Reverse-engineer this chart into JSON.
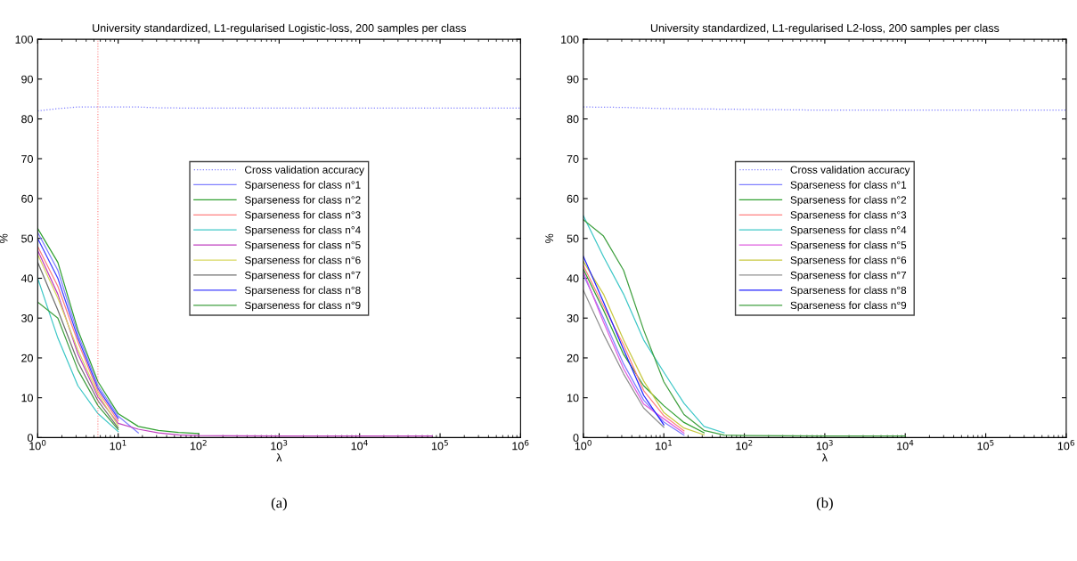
{
  "chart_data": [
    {
      "type": "line",
      "title": "University standardized, L1-regularised Logistic-loss, 200 samples per class",
      "xlabel": "λ",
      "ylabel": "%",
      "annotations": [
        "(a)"
      ],
      "log": "x",
      "xlim": [
        1,
        1000000
      ],
      "xticks": [
        {
          "value": 1,
          "label": "10$^{0}$"
        },
        {
          "value": 10,
          "label": "10$^{1}$"
        },
        {
          "value": 100,
          "label": "10$^{2}$"
        },
        {
          "value": 1000,
          "label": "10$^{3}$"
        },
        {
          "value": 10000,
          "label": "10$^{4}$"
        },
        {
          "value": 100000,
          "label": "10$^{5}$"
        },
        {
          "value": 1000000,
          "label": "10$^{6}$"
        }
      ],
      "ylim": [
        0,
        100
      ],
      "yticks": [
        0,
        10,
        20,
        30,
        40,
        50,
        60,
        70,
        80,
        90,
        100
      ],
      "grid": false,
      "legend": "center",
      "ref_lines": [
        {
          "axis": "x",
          "value": 5.6,
          "color": "#ff8080",
          "line_style": "dotted"
        }
      ],
      "series": [
        {
          "name": "Cross validation accuracy",
          "color": "#8080ff",
          "line_style": "dotted",
          "x": [
            1,
            1.78,
            3.16,
            5.62,
            10,
            17.8,
            31.6,
            100,
            1000,
            10000,
            100000,
            1000000
          ],
          "values": [
            82,
            82.6,
            83,
            83,
            83,
            83,
            82.8,
            82.7,
            82.7,
            82.7,
            82.7,
            82.7
          ]
        },
        {
          "name": "Sparseness for class n°1",
          "color": "#8080ff",
          "x": [
            1,
            1.78,
            3.16,
            5.62,
            10,
            17.8
          ],
          "values": [
            51.5,
            42,
            26,
            13,
            5.4,
            1.2
          ]
        },
        {
          "name": "Sparseness for class n°2",
          "color": "#30a030",
          "x": [
            1,
            1.78,
            3.16,
            5.62,
            10,
            17.8,
            31.6,
            56.2,
            100
          ],
          "values": [
            52.5,
            44,
            27,
            14,
            6,
            2.8,
            1.8,
            1.3,
            1
          ]
        },
        {
          "name": "Sparseness for class n°3",
          "color": "#ff8080",
          "x": [
            1,
            1.78,
            3.16,
            5.62,
            10
          ],
          "values": [
            48,
            38,
            24,
            11.6,
            4.2
          ]
        },
        {
          "name": "Sparseness for class n°4",
          "color": "#40c8c8",
          "x": [
            1,
            1.78,
            3.16,
            5.62,
            10
          ],
          "values": [
            40,
            25,
            13,
            6,
            1.5
          ]
        },
        {
          "name": "Sparseness for class n°5",
          "color": "#c040c0",
          "x": [
            1,
            1.78,
            3.16,
            5.62,
            10,
            17.8,
            31.6,
            56.2,
            100,
            1000,
            10000,
            80000
          ],
          "values": [
            47,
            36,
            21,
            10.2,
            3.6,
            2.1,
            1.2,
            0.7,
            0.5,
            0.4,
            0.4,
            0.4
          ]
        },
        {
          "name": "Sparseness for class n°6",
          "color": "#d8d860",
          "x": [
            1,
            1.78,
            3.16,
            5.62,
            10
          ],
          "values": [
            46,
            35,
            22,
            10.9,
            3
          ]
        },
        {
          "name": "Sparseness for class n°7",
          "color": "#707070",
          "x": [
            1,
            1.78,
            3.16,
            5.62,
            10
          ],
          "values": [
            44,
            32,
            19,
            9.2,
            2.4
          ]
        },
        {
          "name": "Sparseness for class n°8",
          "color": "#4040ff",
          "x": [
            1,
            1.78,
            3.16,
            5.62,
            10
          ],
          "values": [
            50,
            40,
            25,
            12.3,
            4.8
          ]
        },
        {
          "name": "Sparseness for class n°9",
          "color": "#40a040",
          "x": [
            1,
            1.78,
            3.16,
            5.62,
            10
          ],
          "values": [
            34,
            30,
            17,
            8,
            2
          ]
        }
      ]
    },
    {
      "type": "line",
      "title": "University standardized, L1-regularised L2-loss, 200 samples per class",
      "xlabel": "λ",
      "ylabel": "%",
      "annotations": [
        "(b)"
      ],
      "log": "x",
      "xlim": [
        1,
        1000000
      ],
      "xticks": [
        {
          "value": 1,
          "label": "10$^{0}$"
        },
        {
          "value": 10,
          "label": "10$^{1}$"
        },
        {
          "value": 100,
          "label": "10$^{2}$"
        },
        {
          "value": 1000,
          "label": "10$^{3}$"
        },
        {
          "value": 10000,
          "label": "10$^{4}$"
        },
        {
          "value": 100000,
          "label": "10$^{5}$"
        },
        {
          "value": 1000000,
          "label": "10$^{6}$"
        }
      ],
      "ylim": [
        0,
        100
      ],
      "yticks": [
        0,
        10,
        20,
        30,
        40,
        50,
        60,
        70,
        80,
        90,
        100
      ],
      "grid": false,
      "legend": "center",
      "series": [
        {
          "name": "Cross validation accuracy",
          "color": "#8080ff",
          "line_style": "dotted",
          "x": [
            1,
            3.16,
            10,
            31.6,
            100,
            1000,
            10000,
            100000,
            1000000
          ],
          "values": [
            83,
            82.9,
            82.6,
            82.5,
            82.4,
            82.2,
            82.2,
            82.2,
            82.2
          ]
        },
        {
          "name": "Sparseness for class n°1",
          "color": "#8080ff",
          "x": [
            1,
            1.78,
            3.16,
            5.62,
            10,
            17.8
          ],
          "values": [
            40.9,
            30,
            18.5,
            9.4,
            3.9,
            0.6
          ]
        },
        {
          "name": "Sparseness for class n°2",
          "color": "#30a030",
          "x": [
            1,
            1.78,
            3.16,
            5.62,
            10,
            17.8,
            31.6
          ],
          "values": [
            42.3,
            32,
            20.9,
            13,
            8,
            3.8,
            1.2
          ]
        },
        {
          "name": "Sparseness for class n°3",
          "color": "#ff8080",
          "x": [
            1,
            1.78,
            3.16,
            5.62,
            10,
            17.8
          ],
          "values": [
            43.2,
            33,
            23.3,
            11.8,
            5.5,
            1.7
          ]
        },
        {
          "name": "Sparseness for class n°4",
          "color": "#40c8c8",
          "x": [
            1,
            1.78,
            3.16,
            5.62,
            10,
            17.8,
            31.6,
            56.2
          ],
          "values": [
            55.7,
            45.4,
            36,
            24.5,
            16.4,
            8.6,
            2.8,
            1.2
          ]
        },
        {
          "name": "Sparseness for class n°5",
          "color": "#e060e0",
          "x": [
            1,
            1.78,
            3.16,
            5.62,
            10,
            17.8
          ],
          "values": [
            41.6,
            29,
            17.3,
            8.4,
            4.7,
            1.1
          ]
        },
        {
          "name": "Sparseness for class n°6",
          "color": "#c8c840",
          "x": [
            1,
            1.78,
            3.16,
            5.62,
            10,
            17.8,
            31.6
          ],
          "values": [
            44.2,
            36,
            24.5,
            14.2,
            6.3,
            2.4,
            0.7
          ]
        },
        {
          "name": "Sparseness for class n°7",
          "color": "#909090",
          "x": [
            1,
            1.78,
            3.16,
            5.62,
            10
          ],
          "values": [
            37,
            26,
            16,
            7.4,
            2.6
          ]
        },
        {
          "name": "Sparseness for class n°8",
          "color": "#2020ff",
          "x": [
            1,
            1.78,
            3.16,
            5.62,
            10
          ],
          "values": [
            45.5,
            34,
            22.1,
            10.6,
            3.2
          ]
        },
        {
          "name": "Sparseness for class n°9",
          "color": "#40a040",
          "x": [
            1,
            1.78,
            3.16,
            5.62,
            10,
            17.8,
            31.6,
            56.2,
            100,
            1000,
            10000
          ],
          "values": [
            54.7,
            50.6,
            42,
            27,
            14,
            5.8,
            1.8,
            0.6,
            0.5,
            0.4,
            0.4
          ]
        }
      ]
    }
  ]
}
